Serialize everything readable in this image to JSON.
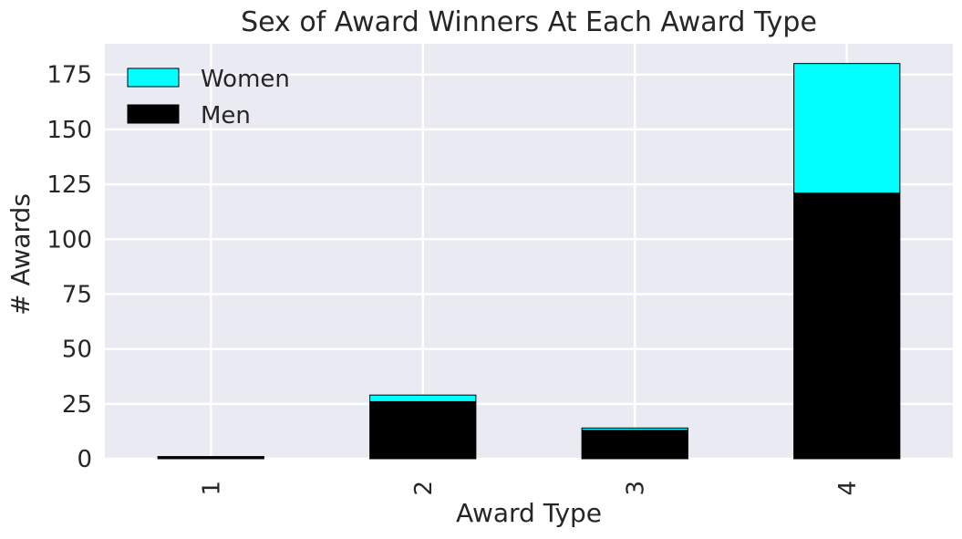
{
  "chart_data": {
    "type": "bar",
    "stacked": true,
    "title": "Sex of Award Winners At Each Award Type",
    "xlabel": "Award Type",
    "ylabel": "# Awards",
    "categories": [
      "1",
      "2",
      "3",
      "4"
    ],
    "ylim": [
      0,
      189
    ],
    "yticks": [
      "0",
      "25",
      "50",
      "75",
      "100",
      "125",
      "150",
      "175"
    ],
    "grid": true,
    "legend_position": "top-left",
    "background_color": "#eaeaf2",
    "grid_color": "#ffffff",
    "series": [
      {
        "name": "Men",
        "values": [
          1,
          26,
          13,
          121
        ],
        "color": "#000000"
      },
      {
        "name": "Women",
        "values": [
          0,
          3,
          1,
          59
        ],
        "color": "#00ffff"
      }
    ],
    "legend": [
      {
        "label": "Women",
        "color": "#00ffff"
      },
      {
        "label": "Men",
        "color": "#000000"
      }
    ]
  }
}
